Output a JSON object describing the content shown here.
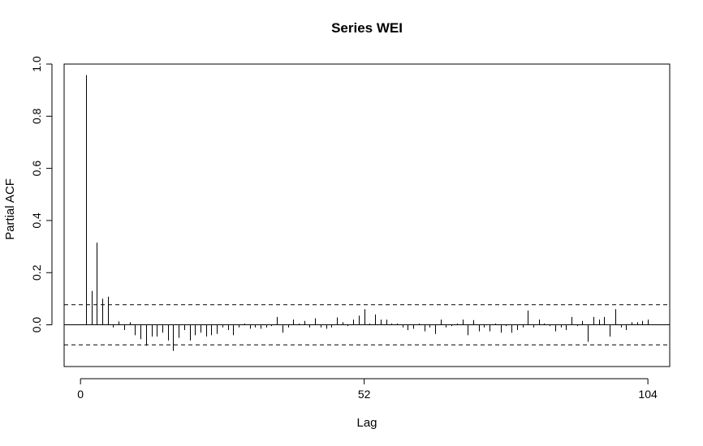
{
  "chart_data": {
    "type": "bar",
    "title": "Series  WEI",
    "xlabel": "Lag",
    "ylabel": "Partial ACF",
    "xlim": [
      -3,
      108
    ],
    "ylim": [
      -0.16,
      1.0
    ],
    "xticks": [
      0,
      52,
      104
    ],
    "yticks": [
      0.0,
      0.2,
      0.4,
      0.6,
      0.8,
      1.0
    ],
    "confidence_bound": 0.077,
    "grid": false,
    "lags": [
      1,
      2,
      3,
      4,
      5,
      6,
      7,
      8,
      9,
      10,
      11,
      12,
      13,
      14,
      15,
      16,
      17,
      18,
      19,
      20,
      21,
      22,
      23,
      24,
      25,
      26,
      27,
      28,
      29,
      30,
      31,
      32,
      33,
      34,
      35,
      36,
      37,
      38,
      39,
      40,
      41,
      42,
      43,
      44,
      45,
      46,
      47,
      48,
      49,
      50,
      51,
      52,
      53,
      54,
      55,
      56,
      57,
      58,
      59,
      60,
      61,
      62,
      63,
      64,
      65,
      66,
      67,
      68,
      69,
      70,
      71,
      72,
      73,
      74,
      75,
      76,
      77,
      78,
      79,
      80,
      81,
      82,
      83,
      84,
      85,
      86,
      87,
      88,
      89,
      90,
      91,
      92,
      93,
      94,
      95,
      96,
      97,
      98,
      99,
      100,
      101,
      102,
      103,
      104
    ],
    "values": [
      0.958,
      0.13,
      0.315,
      0.1,
      0.108,
      -0.01,
      0.013,
      -0.02,
      0.01,
      -0.04,
      -0.055,
      -0.08,
      -0.045,
      -0.045,
      -0.03,
      -0.06,
      -0.1,
      -0.05,
      -0.02,
      -0.06,
      -0.04,
      -0.03,
      -0.045,
      -0.04,
      -0.035,
      -0.01,
      -0.02,
      -0.04,
      -0.01,
      0.005,
      -0.015,
      -0.01,
      -0.015,
      -0.01,
      -0.005,
      0.03,
      -0.03,
      -0.01,
      0.02,
      0.005,
      0.015,
      -0.01,
      0.025,
      -0.01,
      -0.015,
      -0.01,
      0.028,
      0.01,
      -0.005,
      0.02,
      0.035,
      0.06,
      0.005,
      0.04,
      0.02,
      0.02,
      0.005,
      0.005,
      -0.01,
      -0.02,
      -0.015,
      0.005,
      -0.025,
      -0.01,
      -0.035,
      0.02,
      -0.01,
      -0.005,
      0.005,
      0.02,
      -0.04,
      0.018,
      -0.025,
      -0.01,
      -0.025,
      0.005,
      -0.03,
      -0.005,
      -0.03,
      -0.02,
      -0.01,
      0.055,
      -0.01,
      0.02,
      0.005,
      -0.005,
      -0.025,
      -0.01,
      -0.02,
      0.03,
      -0.005,
      0.015,
      -0.065,
      0.03,
      0.02,
      0.03,
      -0.045,
      0.06,
      -0.01,
      -0.02,
      0.01,
      0.01,
      0.015,
      0.02
    ]
  }
}
